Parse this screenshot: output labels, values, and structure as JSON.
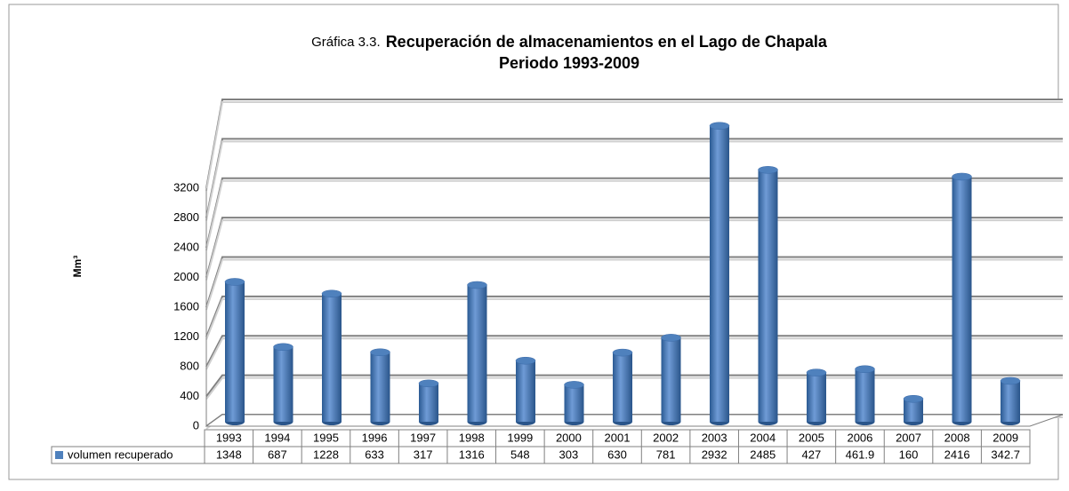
{
  "chart_data": {
    "type": "bar",
    "title_prefix": "Gráfica 3.3.",
    "title": "Recuperación de almacenamientos en el Lago de Chapala",
    "subtitle": "Periodo 1993-2009",
    "y_label": "Mm³",
    "categories": [
      "1993",
      "1994",
      "1995",
      "1996",
      "1997",
      "1998",
      "1999",
      "2000",
      "2001",
      "2002",
      "2003",
      "2004",
      "2005",
      "2006",
      "2007",
      "2008",
      "2009"
    ],
    "series": [
      {
        "name": "volumen recuperado",
        "color": "#4f81bd",
        "values": [
          1348,
          687,
          1228,
          633,
          317,
          1316,
          548,
          303,
          630,
          781,
          2932,
          2485,
          427,
          461.9,
          160,
          2416,
          342.7
        ]
      }
    ],
    "ylim": [
      0,
      3200
    ],
    "yticks": [
      0,
      400,
      800,
      1200,
      1600,
      2000,
      2400,
      2800,
      3200
    ],
    "grid": true
  }
}
